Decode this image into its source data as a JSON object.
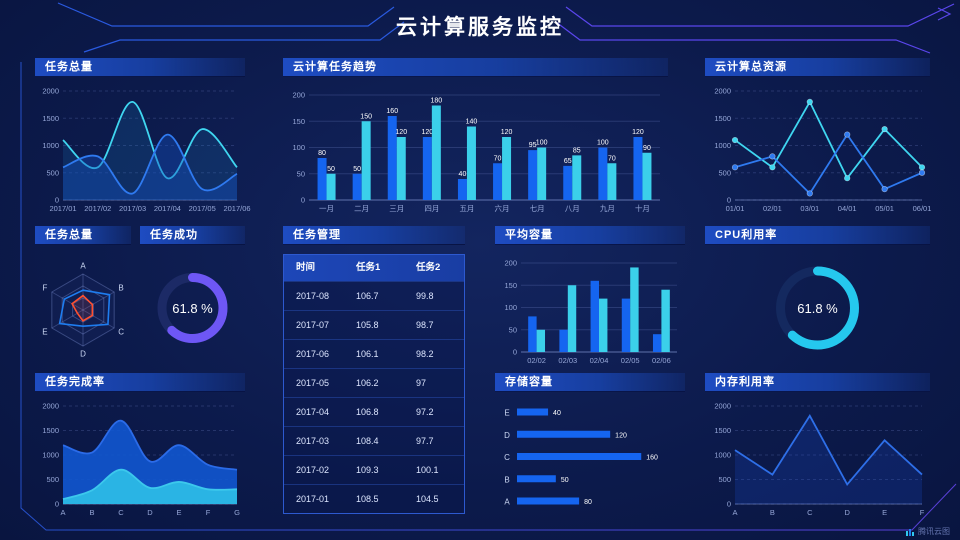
{
  "page": {
    "title": "云计算服务监控",
    "watermark": "腾讯云图"
  },
  "panels": {
    "task_total_area": {
      "title": "任务总量"
    },
    "task_trend": {
      "title": "云计算任务趋势"
    },
    "total_resources": {
      "title": "云计算总资源"
    },
    "task_total_radar": {
      "title": "任务总量"
    },
    "task_success": {
      "title": "任务成功"
    },
    "task_management": {
      "title": "任务管理"
    },
    "avg_capacity": {
      "title": "平均容量"
    },
    "cpu_usage": {
      "title": "CPU利用率"
    },
    "completion_rate": {
      "title": "任务完成率"
    },
    "storage": {
      "title": "存储容量"
    },
    "memory": {
      "title": "内存利用率"
    }
  },
  "chart_data": [
    {
      "id": "task_total_area",
      "type": "line",
      "title": "任务总量",
      "smooth": true,
      "markers": false,
      "grid": "dashed",
      "pad_left": 28,
      "x": [
        "2017/01",
        "2017/02",
        "2017/03",
        "2017/04",
        "2017/05",
        "2017/06"
      ],
      "ylim": [
        0,
        2000
      ],
      "yticks": [
        0,
        500,
        1000,
        1500,
        2000
      ],
      "series": [
        {
          "name": "series-cyan",
          "color": "#3fd6f0",
          "fill": "#1e86c8",
          "fill_opacity": 0.18,
          "values": [
            1100,
            600,
            1800,
            400,
            1300,
            600
          ]
        },
        {
          "name": "series-blue",
          "color": "#2f7af0",
          "fill": "#1450c0",
          "fill_opacity": 0.4,
          "values": [
            600,
            800,
            120,
            1200,
            200,
            480
          ]
        }
      ]
    },
    {
      "id": "task_trend",
      "type": "bar",
      "title": "云计算任务趋势",
      "categories": [
        "一月",
        "二月",
        "三月",
        "四月",
        "五月",
        "六月",
        "七月",
        "八月",
        "九月",
        "十月"
      ],
      "ylim": [
        0,
        200
      ],
      "yticks": [
        0,
        50,
        100,
        150,
        200
      ],
      "value_labels": true,
      "series": [
        {
          "name": "series-blue",
          "color": "#1565f0",
          "values": [
            80,
            50,
            160,
            120,
            40,
            70,
            95,
            65,
            100,
            120
          ]
        },
        {
          "name": "series-cyan",
          "color": "#3bd0ea",
          "values": [
            50,
            150,
            120,
            180,
            140,
            120,
            100,
            85,
            70,
            90
          ]
        }
      ]
    },
    {
      "id": "total_resources",
      "type": "line",
      "title": "云计算总资源",
      "smooth": false,
      "markers": true,
      "grid": "dashed",
      "pad_left": 30,
      "x": [
        "01/01",
        "02/01",
        "03/01",
        "04/01",
        "05/01",
        "06/01"
      ],
      "ylim": [
        0,
        2000
      ],
      "yticks": [
        0,
        500,
        1000,
        1500,
        2000
      ],
      "series": [
        {
          "name": "series-cyan",
          "color": "#3fd6f0",
          "values": [
            1100,
            600,
            1800,
            400,
            1300,
            600
          ]
        },
        {
          "name": "series-blue",
          "color": "#2f7af0",
          "values": [
            600,
            800,
            120,
            1200,
            200,
            500
          ]
        }
      ]
    },
    {
      "id": "task_total_radar",
      "type": "radar",
      "title": "任务总量",
      "axes": [
        "A",
        "B",
        "C",
        "D",
        "E",
        "F"
      ],
      "max": 100,
      "series": [
        {
          "name": "series-blue",
          "color": "#1e7df0",
          "values": [
            55,
            85,
            80,
            45,
            75,
            60
          ]
        },
        {
          "name": "series-red",
          "color": "#ff5030",
          "fill_opacity": 0.12,
          "values": [
            40,
            30,
            30,
            30,
            18,
            35
          ]
        }
      ]
    },
    {
      "id": "task_success",
      "type": "donut",
      "title": "任务成功",
      "value": 61.8,
      "label": "61.8 %",
      "color": "#6e57f5",
      "track": "#1c2a66",
      "thickness": 9
    },
    {
      "id": "task_management",
      "type": "table",
      "title": "任务管理",
      "columns": [
        "时间",
        "任务1",
        "任务2"
      ],
      "rows": [
        [
          "2017-08",
          "106.7",
          "99.8"
        ],
        [
          "2017-07",
          "105.8",
          "98.7"
        ],
        [
          "2017-06",
          "106.1",
          "98.2"
        ],
        [
          "2017-05",
          "106.2",
          "97"
        ],
        [
          "2017-04",
          "106.8",
          "97.2"
        ],
        [
          "2017-03",
          "108.4",
          "97.7"
        ],
        [
          "2017-02",
          "109.3",
          "100.1"
        ],
        [
          "2017-01",
          "108.5",
          "104.5"
        ]
      ]
    },
    {
      "id": "avg_capacity",
      "type": "bar",
      "title": "平均容量",
      "categories": [
        "02/02",
        "02/03",
        "02/04",
        "02/05",
        "02/06"
      ],
      "ylim": [
        0,
        200
      ],
      "yticks": [
        0,
        50,
        100,
        150,
        200
      ],
      "value_labels": false,
      "series": [
        {
          "name": "series-blue",
          "color": "#1565f0",
          "values": [
            80,
            50,
            160,
            120,
            40
          ]
        },
        {
          "name": "series-cyan",
          "color": "#3bd0ea",
          "values": [
            50,
            150,
            120,
            190,
            140
          ]
        }
      ]
    },
    {
      "id": "cpu_usage",
      "type": "donut",
      "title": "CPU利用率",
      "value": 61.8,
      "label": "61.8 %",
      "color": "#25c8ee",
      "track": "#14295f",
      "thickness": 9
    },
    {
      "id": "completion_rate",
      "type": "line",
      "title": "任务完成率",
      "smooth": true,
      "markers": false,
      "grid": "dashed",
      "pad_left": 28,
      "x": [
        "A",
        "B",
        "C",
        "D",
        "E",
        "F",
        "G"
      ],
      "ylim": [
        0,
        2000
      ],
      "yticks": [
        0,
        500,
        1000,
        1500,
        2000
      ],
      "series": [
        {
          "name": "series-blue",
          "color": "#2b6be8",
          "fill": "#1157d0",
          "fill_opacity": 0.9,
          "values": [
            1200,
            1050,
            1700,
            870,
            1200,
            800,
            700
          ]
        },
        {
          "name": "series-cyan",
          "color": "#3cc8ec",
          "fill": "#2ab4e4",
          "fill_opacity": 1,
          "values": [
            100,
            280,
            700,
            330,
            450,
            300,
            300
          ]
        }
      ]
    },
    {
      "id": "storage",
      "type": "hbar",
      "title": "存储容量",
      "categories": [
        "E",
        "D",
        "C",
        "B",
        "A"
      ],
      "values": [
        40,
        120,
        160,
        50,
        80
      ],
      "max": 170,
      "color": "#1565f0"
    },
    {
      "id": "memory",
      "type": "line",
      "title": "内存利用率",
      "smooth": false,
      "markers": false,
      "grid": "dashed",
      "pad_left": 30,
      "x": [
        "A",
        "B",
        "C",
        "D",
        "E",
        "F"
      ],
      "ylim": [
        0,
        2000
      ],
      "yticks": [
        0,
        500,
        1000,
        1500,
        2000
      ],
      "series": [
        {
          "name": "series-blue",
          "color": "#2e6fe8",
          "fill": "#1b4fd0",
          "fill_opacity": 0.22,
          "values": [
            1100,
            600,
            1800,
            400,
            1300,
            600
          ]
        }
      ]
    }
  ]
}
